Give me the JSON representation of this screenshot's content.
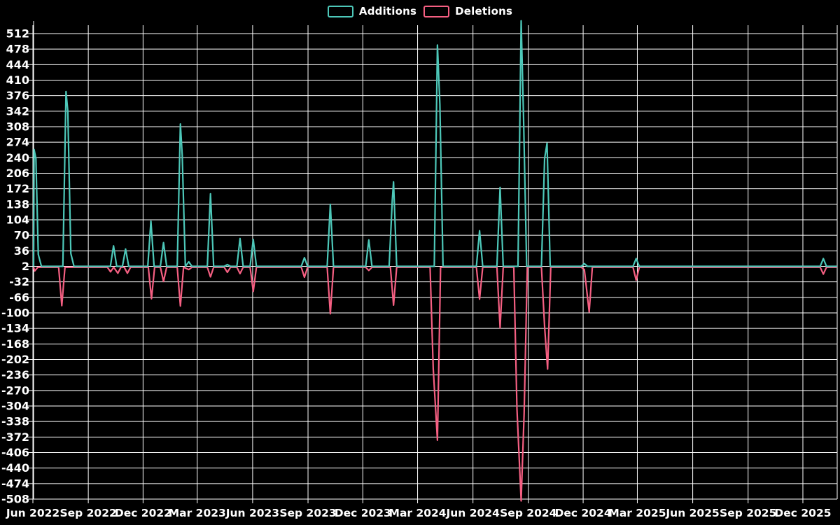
{
  "page": {
    "background": "#000000"
  },
  "legend": {
    "items": [
      {
        "label": "Additions",
        "color": "#4dc8b9"
      },
      {
        "label": "Deletions",
        "color": "#f55f82"
      }
    ]
  },
  "chart_data": {
    "type": "line",
    "title": "",
    "grid": true,
    "legend_position": "top-center",
    "background": "#000000",
    "grid_color": "#ffffff",
    "axis_text_color": "#ffffff",
    "x_axis": {
      "kind": "time",
      "tick_labels": [
        "Jun 2022",
        "Sep 2022",
        "Dec 2022",
        "Mar 2023",
        "Jun 2023",
        "Sep 2023",
        "Dec 2023",
        "Mar 2024",
        "Jun 2024",
        "Sep 2024",
        "Dec 2024",
        "Mar 2025",
        "Jun 2025",
        "Sep 2025",
        "Dec 2025"
      ],
      "tick_dates": [
        "2022-06-01",
        "2022-09-01",
        "2022-12-01",
        "2023-03-01",
        "2023-06-01",
        "2023-09-01",
        "2023-12-01",
        "2024-03-01",
        "2024-06-01",
        "2024-09-01",
        "2024-12-01",
        "2025-03-01",
        "2025-06-01",
        "2025-09-01",
        "2025-12-01"
      ],
      "date_range": [
        "2022-06-01",
        "2026-01-27"
      ]
    },
    "y_axis": {
      "min": -508,
      "max": 512,
      "step": 34,
      "ticks": [
        512,
        478,
        444,
        410,
        376,
        342,
        308,
        274,
        240,
        206,
        172,
        138,
        104,
        70,
        36,
        2,
        -32,
        -66,
        -100,
        -134,
        -168,
        -202,
        -236,
        -270,
        -304,
        -338,
        -372,
        -406,
        -440,
        -474,
        -508
      ]
    },
    "series": [
      {
        "name": "Additions",
        "color": "#4dc8b9",
        "baseline": 2,
        "points": [
          [
            "2022-06-03",
            258
          ],
          [
            "2022-06-06",
            238
          ],
          [
            "2022-06-10",
            28
          ],
          [
            "2022-07-26",
            385
          ],
          [
            "2022-07-29",
            342
          ],
          [
            "2022-08-03",
            30
          ],
          [
            "2022-10-13",
            47
          ],
          [
            "2022-11-02",
            40
          ],
          [
            "2022-12-14",
            101
          ],
          [
            "2023-01-04",
            54
          ],
          [
            "2023-02-01",
            314
          ],
          [
            "2023-02-04",
            246
          ],
          [
            "2023-02-15",
            12
          ],
          [
            "2023-03-23",
            161
          ],
          [
            "2023-04-20",
            6
          ],
          [
            "2023-05-11",
            63
          ],
          [
            "2023-06-02",
            61
          ],
          [
            "2023-08-26",
            21
          ],
          [
            "2023-10-08",
            138
          ],
          [
            "2023-12-11",
            60
          ],
          [
            "2024-01-19",
            147
          ],
          [
            "2024-01-21",
            187
          ],
          [
            "2024-04-03",
            487
          ],
          [
            "2024-04-07",
            357
          ],
          [
            "2024-06-12",
            80
          ],
          [
            "2024-07-16",
            175
          ],
          [
            "2024-08-20",
            540
          ],
          [
            "2024-08-24",
            330
          ],
          [
            "2024-09-28",
            238
          ],
          [
            "2024-10-02",
            272
          ],
          [
            "2024-12-03",
            8
          ],
          [
            "2025-02-27",
            19
          ],
          [
            "2026-01-04",
            19
          ]
        ]
      },
      {
        "name": "Deletions",
        "color": "#f55f82",
        "baseline": 0,
        "points": [
          [
            "2022-06-04",
            -8
          ],
          [
            "2022-07-19",
            -84
          ],
          [
            "2022-10-08",
            -10
          ],
          [
            "2022-10-20",
            -13
          ],
          [
            "2022-11-05",
            -13
          ],
          [
            "2022-12-15",
            -69
          ],
          [
            "2023-01-04",
            -31
          ],
          [
            "2023-02-01",
            -85
          ],
          [
            "2023-02-15",
            -5
          ],
          [
            "2023-03-23",
            -21
          ],
          [
            "2023-04-20",
            -11
          ],
          [
            "2023-05-11",
            -14
          ],
          [
            "2023-06-02",
            -53
          ],
          [
            "2023-08-26",
            -22
          ],
          [
            "2023-10-08",
            -102
          ],
          [
            "2023-12-11",
            -7
          ],
          [
            "2024-01-21",
            -83
          ],
          [
            "2024-03-27",
            -222
          ],
          [
            "2024-04-03",
            -379
          ],
          [
            "2024-06-12",
            -70
          ],
          [
            "2024-07-16",
            -133
          ],
          [
            "2024-08-13",
            -310
          ],
          [
            "2024-08-20",
            -512
          ],
          [
            "2024-08-25",
            -318
          ],
          [
            "2024-09-28",
            -130
          ],
          [
            "2024-10-03",
            -223
          ],
          [
            "2024-12-03",
            -5
          ],
          [
            "2024-12-11",
            -98
          ],
          [
            "2025-02-27",
            -28
          ],
          [
            "2026-01-04",
            -15
          ]
        ]
      }
    ]
  }
}
